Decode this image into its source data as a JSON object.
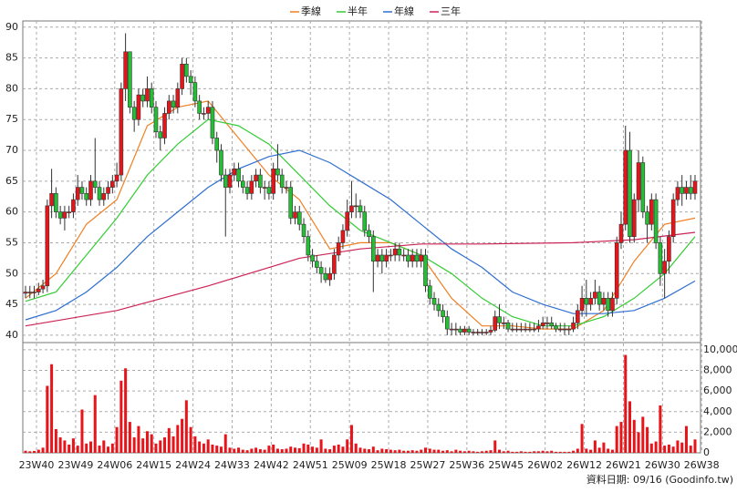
{
  "chart_data": {
    "type": "candlestick",
    "legend": "top",
    "grid": true,
    "categories": [
      "23W40",
      null,
      null,
      null,
      null,
      null,
      null,
      null,
      null,
      "23W49",
      null,
      null,
      null,
      null,
      null,
      null,
      null,
      null,
      "24W06",
      null,
      null,
      null,
      null,
      null,
      null,
      null,
      null,
      "24W15",
      null,
      null,
      null,
      null,
      null,
      null,
      null,
      null,
      "24W24",
      null,
      null,
      null,
      null,
      null,
      null,
      null,
      null,
      "24W33",
      null,
      null,
      null,
      null,
      null,
      null,
      null,
      null,
      "24W42",
      null,
      null,
      null,
      null,
      null,
      null,
      null,
      null,
      "24W51",
      null,
      null,
      null,
      null,
      null,
      null,
      null,
      null,
      "25W09",
      null,
      null,
      null,
      null,
      null,
      null,
      null,
      null,
      "25W18",
      null,
      null,
      null,
      null,
      null,
      null,
      null,
      null,
      "25W27",
      null,
      null,
      null,
      null,
      null,
      null,
      null,
      null,
      "25W36",
      null,
      null,
      null,
      null,
      null,
      null,
      null,
      null,
      "25W45",
      null,
      null,
      null,
      null,
      null,
      null,
      null,
      null,
      "26W02",
      null,
      null,
      null,
      null,
      null,
      null,
      null,
      null,
      "26W12",
      null,
      null,
      null,
      null,
      null,
      null,
      null,
      null,
      "26W21",
      null,
      null,
      null,
      null,
      null,
      null,
      null,
      null,
      "26W30",
      null,
      null,
      null,
      null,
      null,
      null,
      null,
      null,
      "26W38",
      null
    ],
    "open": [
      46.8,
      47,
      47,
      47,
      47.5,
      48,
      61,
      63,
      60,
      59,
      60,
      60,
      62,
      64,
      63,
      62,
      65,
      64,
      62,
      63,
      64,
      65,
      66,
      80,
      86,
      77,
      75,
      79,
      78,
      80,
      77,
      73,
      72,
      76,
      78,
      77,
      80,
      84,
      82,
      81,
      78,
      76,
      76,
      77,
      72,
      70,
      66,
      64,
      66,
      67,
      65,
      64,
      63,
      65,
      66,
      64,
      64,
      63,
      67,
      66,
      64,
      64,
      59,
      60,
      58,
      56,
      53,
      52,
      51,
      50,
      49,
      50,
      53,
      55,
      57,
      60,
      61,
      61,
      60,
      57,
      56,
      52,
      53,
      52,
      53,
      53,
      54,
      53,
      53,
      52,
      53,
      52,
      53,
      48,
      46,
      45,
      44,
      43,
      41,
      41,
      41,
      40.5,
      41,
      40.5,
      40.5,
      40.5,
      40.5,
      40.5,
      40.8,
      43,
      42,
      42,
      41,
      41,
      41,
      41,
      41,
      41,
      41,
      41.5,
      42,
      42,
      41.5,
      41,
      41,
      41,
      41,
      42,
      44,
      46,
      45,
      46,
      47,
      45,
      46,
      44,
      46,
      55,
      58,
      70,
      56,
      62,
      68,
      60,
      58,
      62,
      55,
      50,
      52,
      56,
      62,
      64,
      63,
      64,
      63
    ],
    "high": [
      48,
      48,
      48,
      48.5,
      49,
      62,
      67,
      64,
      61,
      61,
      61,
      63,
      66,
      65,
      64,
      66,
      72,
      65,
      64,
      65,
      66,
      68,
      81,
      89,
      86,
      78,
      80,
      80,
      82,
      81,
      78,
      74,
      77,
      79,
      79,
      81,
      85,
      85,
      83,
      82,
      79,
      77,
      78,
      78,
      73,
      71,
      67,
      67,
      68,
      68,
      66,
      65,
      66,
      67,
      67,
      65,
      65,
      68,
      71,
      67,
      65,
      65,
      61,
      61,
      59,
      57,
      54,
      53,
      52,
      51,
      51,
      54,
      56,
      58,
      62,
      65,
      63,
      62,
      61,
      58,
      57,
      54,
      54,
      54,
      54,
      55,
      55,
      54,
      54,
      54,
      54,
      54,
      54,
      49,
      47,
      46,
      45,
      44,
      42,
      42,
      41.5,
      41.5,
      41.5,
      41,
      41,
      41,
      41,
      41.5,
      44,
      45,
      43,
      42.5,
      42,
      42,
      42,
      42,
      42,
      42,
      42.5,
      43,
      43,
      43,
      42,
      42,
      42,
      41.5,
      43,
      45,
      48,
      49,
      47,
      49,
      48,
      47,
      47,
      47,
      56,
      60,
      74,
      73,
      63,
      70,
      69,
      61,
      63,
      63,
      56,
      54,
      57,
      63,
      65,
      66,
      65,
      66,
      66
    ],
    "low": [
      46,
      46,
      46,
      46.5,
      46.8,
      47,
      59,
      59,
      58,
      57,
      59,
      59,
      61,
      62,
      61,
      61,
      63,
      61,
      61,
      62,
      63,
      64,
      65,
      78,
      76,
      73,
      74,
      77,
      77,
      76,
      72,
      70,
      71,
      75,
      76,
      76,
      79,
      81,
      79,
      77,
      75,
      75,
      75,
      71,
      68,
      65,
      56,
      63,
      65,
      64,
      63,
      62,
      62,
      64,
      63,
      62,
      62,
      62,
      65,
      63,
      63,
      58,
      58,
      57,
      55,
      52,
      51,
      50,
      48.5,
      48.5,
      48,
      49,
      52,
      54,
      56,
      59,
      59,
      59,
      56,
      55,
      47,
      51,
      50,
      51,
      52,
      52,
      52,
      52,
      51,
      51,
      51,
      51,
      47,
      45,
      44,
      43,
      42,
      40,
      40,
      40,
      40,
      40,
      40,
      40,
      40,
      40,
      40,
      40,
      40.5,
      41,
      41,
      40.5,
      40.5,
      40.5,
      40.5,
      40.5,
      40.5,
      40.5,
      40.5,
      41,
      41,
      41,
      40.5,
      40.5,
      40,
      40,
      40.5,
      41,
      43,
      43,
      44,
      45,
      44,
      44,
      43,
      43,
      45,
      54,
      57,
      55,
      55,
      60,
      59,
      55,
      57,
      54,
      48,
      46,
      50,
      55,
      61,
      61,
      62,
      62,
      62
    ],
    "close": [
      47,
      47,
      47,
      47.5,
      48,
      61,
      63,
      60,
      59,
      60,
      60,
      62,
      64,
      63,
      62,
      65,
      64,
      62,
      63,
      64,
      65,
      66,
      80,
      86,
      77,
      75,
      79,
      78,
      80,
      77,
      73,
      72,
      76,
      78,
      77,
      80,
      84,
      82,
      81,
      78,
      76,
      76,
      77,
      72,
      70,
      66,
      64,
      66,
      67,
      65,
      64,
      63,
      65,
      66,
      64,
      64,
      63,
      67,
      66,
      64,
      64,
      59,
      60,
      58,
      56,
      53,
      52,
      51,
      50,
      49,
      50,
      53,
      55,
      57,
      60,
      61,
      61,
      60,
      57,
      56,
      52,
      53,
      52,
      53,
      53,
      54,
      53,
      53,
      52,
      53,
      52,
      53,
      48,
      46,
      45,
      44,
      43,
      41,
      41,
      41,
      40.5,
      41,
      40.5,
      40.5,
      40.5,
      40.5,
      40.5,
      40.8,
      43,
      42,
      42,
      41,
      41,
      41,
      41,
      41,
      41,
      41,
      41.5,
      42,
      42,
      41.5,
      41,
      41,
      41,
      41,
      42,
      44,
      46,
      45,
      46,
      47,
      45,
      46,
      44,
      46,
      55,
      58,
      70,
      56,
      62,
      68,
      60,
      58,
      62,
      55,
      50,
      52,
      56,
      62,
      64,
      63,
      64,
      63,
      65
    ],
    "up_color": "#e8141a",
    "down_color": "#22c032",
    "volume": [
      200,
      150,
      180,
      300,
      500,
      6500,
      8600,
      2300,
      1500,
      1200,
      800,
      1400,
      700,
      4200,
      900,
      1100,
      5600,
      700,
      1200,
      600,
      900,
      2500,
      7000,
      8200,
      3000,
      1500,
      2600,
      1400,
      2100,
      1800,
      900,
      1200,
      1500,
      2400,
      1600,
      2700,
      3300,
      5100,
      2500,
      1600,
      1100,
      900,
      1300,
      800,
      700,
      600,
      1800,
      500,
      400,
      500,
      300,
      250,
      400,
      500,
      350,
      300,
      700,
      800,
      400,
      350,
      400,
      600,
      500,
      450,
      900,
      800,
      600,
      500,
      1300,
      400,
      350,
      700,
      800,
      600,
      1300,
      2700,
      900,
      500,
      400,
      350,
      600,
      250,
      400,
      350,
      300,
      250,
      300,
      200,
      200,
      250,
      200,
      300,
      500,
      400,
      300,
      300,
      200,
      250,
      150,
      300,
      200,
      150,
      200,
      150,
      100,
      150,
      200,
      250,
      1200,
      300,
      150,
      200,
      100,
      100,
      150,
      100,
      100,
      150,
      150,
      200,
      150,
      200,
      100,
      100,
      100,
      100,
      200,
      400,
      2800,
      400,
      300,
      1200,
      500,
      1000,
      400,
      300,
      2600,
      3000,
      9500,
      5000,
      3200,
      2000,
      3500,
      2500,
      900,
      1100,
      4600,
      700,
      800,
      600,
      1200,
      1000,
      2600,
      700,
      1300
    ],
    "volume_color": "#e8141a",
    "series": [
      {
        "name": "季線",
        "color": "#f07f22",
        "x": [
          0,
          7,
          14,
          21,
          28,
          35,
          42,
          49,
          56,
          63,
          70,
          77,
          84,
          91,
          98,
          105,
          112,
          119,
          126,
          133,
          140,
          147,
          154
        ],
        "values": [
          46,
          50,
          58,
          62,
          74,
          77,
          78,
          72,
          66,
          62,
          54,
          55,
          55,
          53,
          46,
          41.5,
          41.5,
          41,
          41,
          44,
          52,
          58,
          59
        ]
      },
      {
        "name": "半年",
        "color": "#33cc33",
        "x": [
          0,
          7,
          14,
          21,
          28,
          35,
          42,
          49,
          56,
          63,
          70,
          77,
          84,
          91,
          98,
          105,
          112,
          119,
          126,
          133,
          140,
          147,
          154
        ],
        "values": [
          45.5,
          47,
          53,
          59,
          66,
          71,
          75,
          74,
          71,
          66,
          61,
          57,
          55,
          53,
          50,
          46,
          43,
          41.5,
          41.5,
          43,
          46,
          50,
          56
        ]
      },
      {
        "name": "年線",
        "color": "#2f6fd0",
        "x": [
          0,
          7,
          14,
          21,
          28,
          35,
          42,
          49,
          56,
          63,
          70,
          77,
          84,
          91,
          98,
          105,
          112,
          119,
          126,
          133,
          140,
          147,
          154
        ],
        "values": [
          42.5,
          44,
          47,
          51,
          56,
          60,
          64,
          67,
          69,
          70,
          68,
          65,
          62,
          58,
          54,
          51,
          47,
          45,
          43.5,
          43.5,
          44,
          46,
          48.8
        ]
      },
      {
        "name": "三年",
        "color": "#cc2255",
        "x": [
          0,
          21,
          42,
          63,
          77,
          91,
          105,
          126,
          140,
          154
        ],
        "values": [
          41.5,
          44,
          48,
          52.5,
          54,
          54.8,
          54.8,
          55,
          55.5,
          56.7
        ]
      }
    ],
    "ylim": [
      38.8,
      91
    ],
    "yticks": [
      40,
      45,
      50,
      55,
      60,
      65,
      70,
      75,
      80,
      85,
      90
    ],
    "y2lim": [
      0,
      10700
    ],
    "y2ticks": [
      0,
      {
        "value": 2000,
        "label": "2,000"
      },
      {
        "value": 4000,
        "label": "4,000"
      },
      {
        "value": 6000,
        "label": "6,000"
      },
      {
        "value": 8000,
        "label": "8,000"
      },
      {
        "value": 10000,
        "label": "10,000"
      }
    ],
    "footnote": "資料日期: 09/16 (Goodinfo.tw)"
  }
}
